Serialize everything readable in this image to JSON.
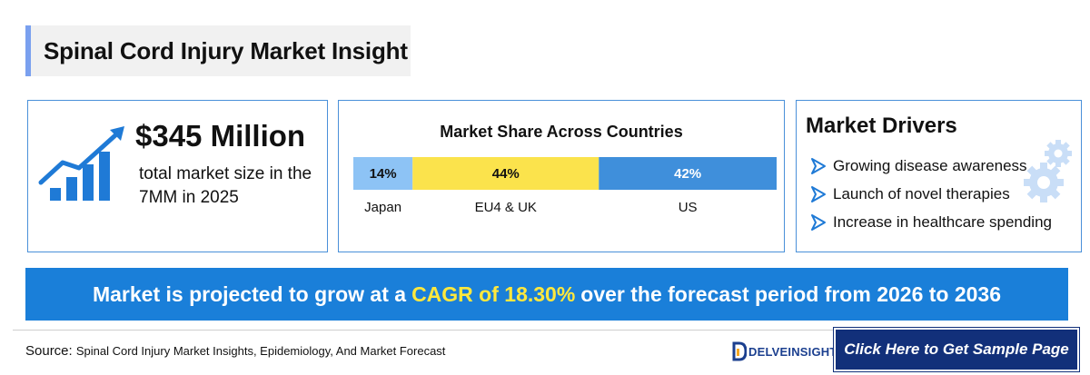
{
  "title": "Spinal Cord Injury Market Insight",
  "market_size": {
    "value": "$345 Million",
    "description": "total market size in the 7MM in 2025"
  },
  "drivers": {
    "title": "Market Drivers",
    "items": [
      "Growing disease awareness",
      "Launch of novel therapies",
      "Increase in healthcare spending"
    ]
  },
  "cagr": {
    "prefix": "Market is projected to grow at a",
    "highlight": "CAGR of 18.30%",
    "suffix": "over the forecast period from 2026 to 2036"
  },
  "source": {
    "label": "Source:",
    "text": "Spinal Cord Injury Market Insights, Epidemiology, And Market Forecast"
  },
  "logo": {
    "text": "DELVEINSIGHT"
  },
  "cta": {
    "label": "Click Here to Get Sample Page"
  },
  "colors": {
    "accent": "#7aa0ef",
    "banner": "#1a7fd9",
    "highlight": "#ffe83d",
    "cta": "#12307a",
    "card_border": "#4a90d9"
  },
  "chart_data": {
    "type": "bar",
    "orientation": "horizontal-stacked",
    "title": "Market Share Across Countries",
    "categories": [
      "Japan",
      "EU4 & UK",
      "US"
    ],
    "values": [
      14,
      44,
      42
    ],
    "value_labels": [
      "14%",
      "44%",
      "42%"
    ],
    "colors": [
      "#8dc3f5",
      "#fbe34c",
      "#3f8fdb"
    ],
    "label_colors": [
      "#111111",
      "#111111",
      "#ffffff"
    ],
    "unit": "%"
  }
}
